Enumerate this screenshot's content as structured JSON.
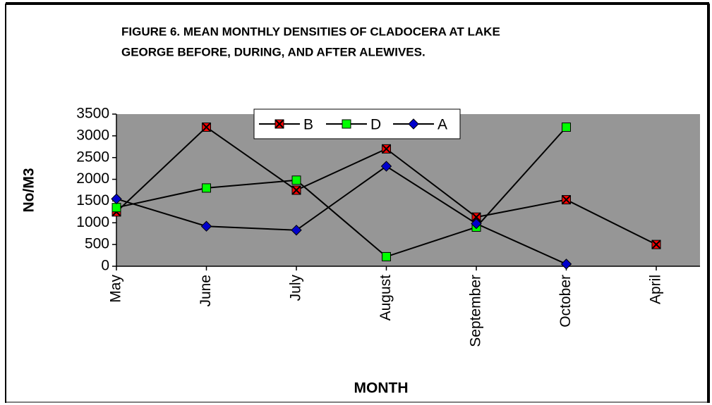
{
  "chart_data": {
    "type": "line",
    "title": [
      "FIGURE 6. MEAN MONTHLY DENSITIES OF CLADOCERA AT LAKE",
      "GEORGE BEFORE, DURING, AND AFTER ALEWIVES."
    ],
    "x_label": "MONTH",
    "y_label": "No/M3",
    "categories": [
      "May",
      "June",
      "July",
      "August",
      "September",
      "October",
      "April"
    ],
    "series": [
      {
        "name": "B",
        "color": "#ff0000",
        "marker": "x-square",
        "values": [
          1250,
          3200,
          1750,
          2700,
          1130,
          1530,
          500
        ]
      },
      {
        "name": "D",
        "color": "#00ff00",
        "marker": "square",
        "values": [
          1350,
          1800,
          1980,
          220,
          900,
          3200,
          null
        ]
      },
      {
        "name": "A",
        "color": "#0000cc",
        "marker": "diamond",
        "values": [
          1550,
          920,
          830,
          2300,
          980,
          50,
          null
        ]
      }
    ],
    "ylim": [
      0,
      3500
    ],
    "yticks": [
      0,
      500,
      1000,
      1500,
      2000,
      2500,
      3000,
      3500
    ],
    "plot_background": "#969696",
    "legend": "top"
  }
}
